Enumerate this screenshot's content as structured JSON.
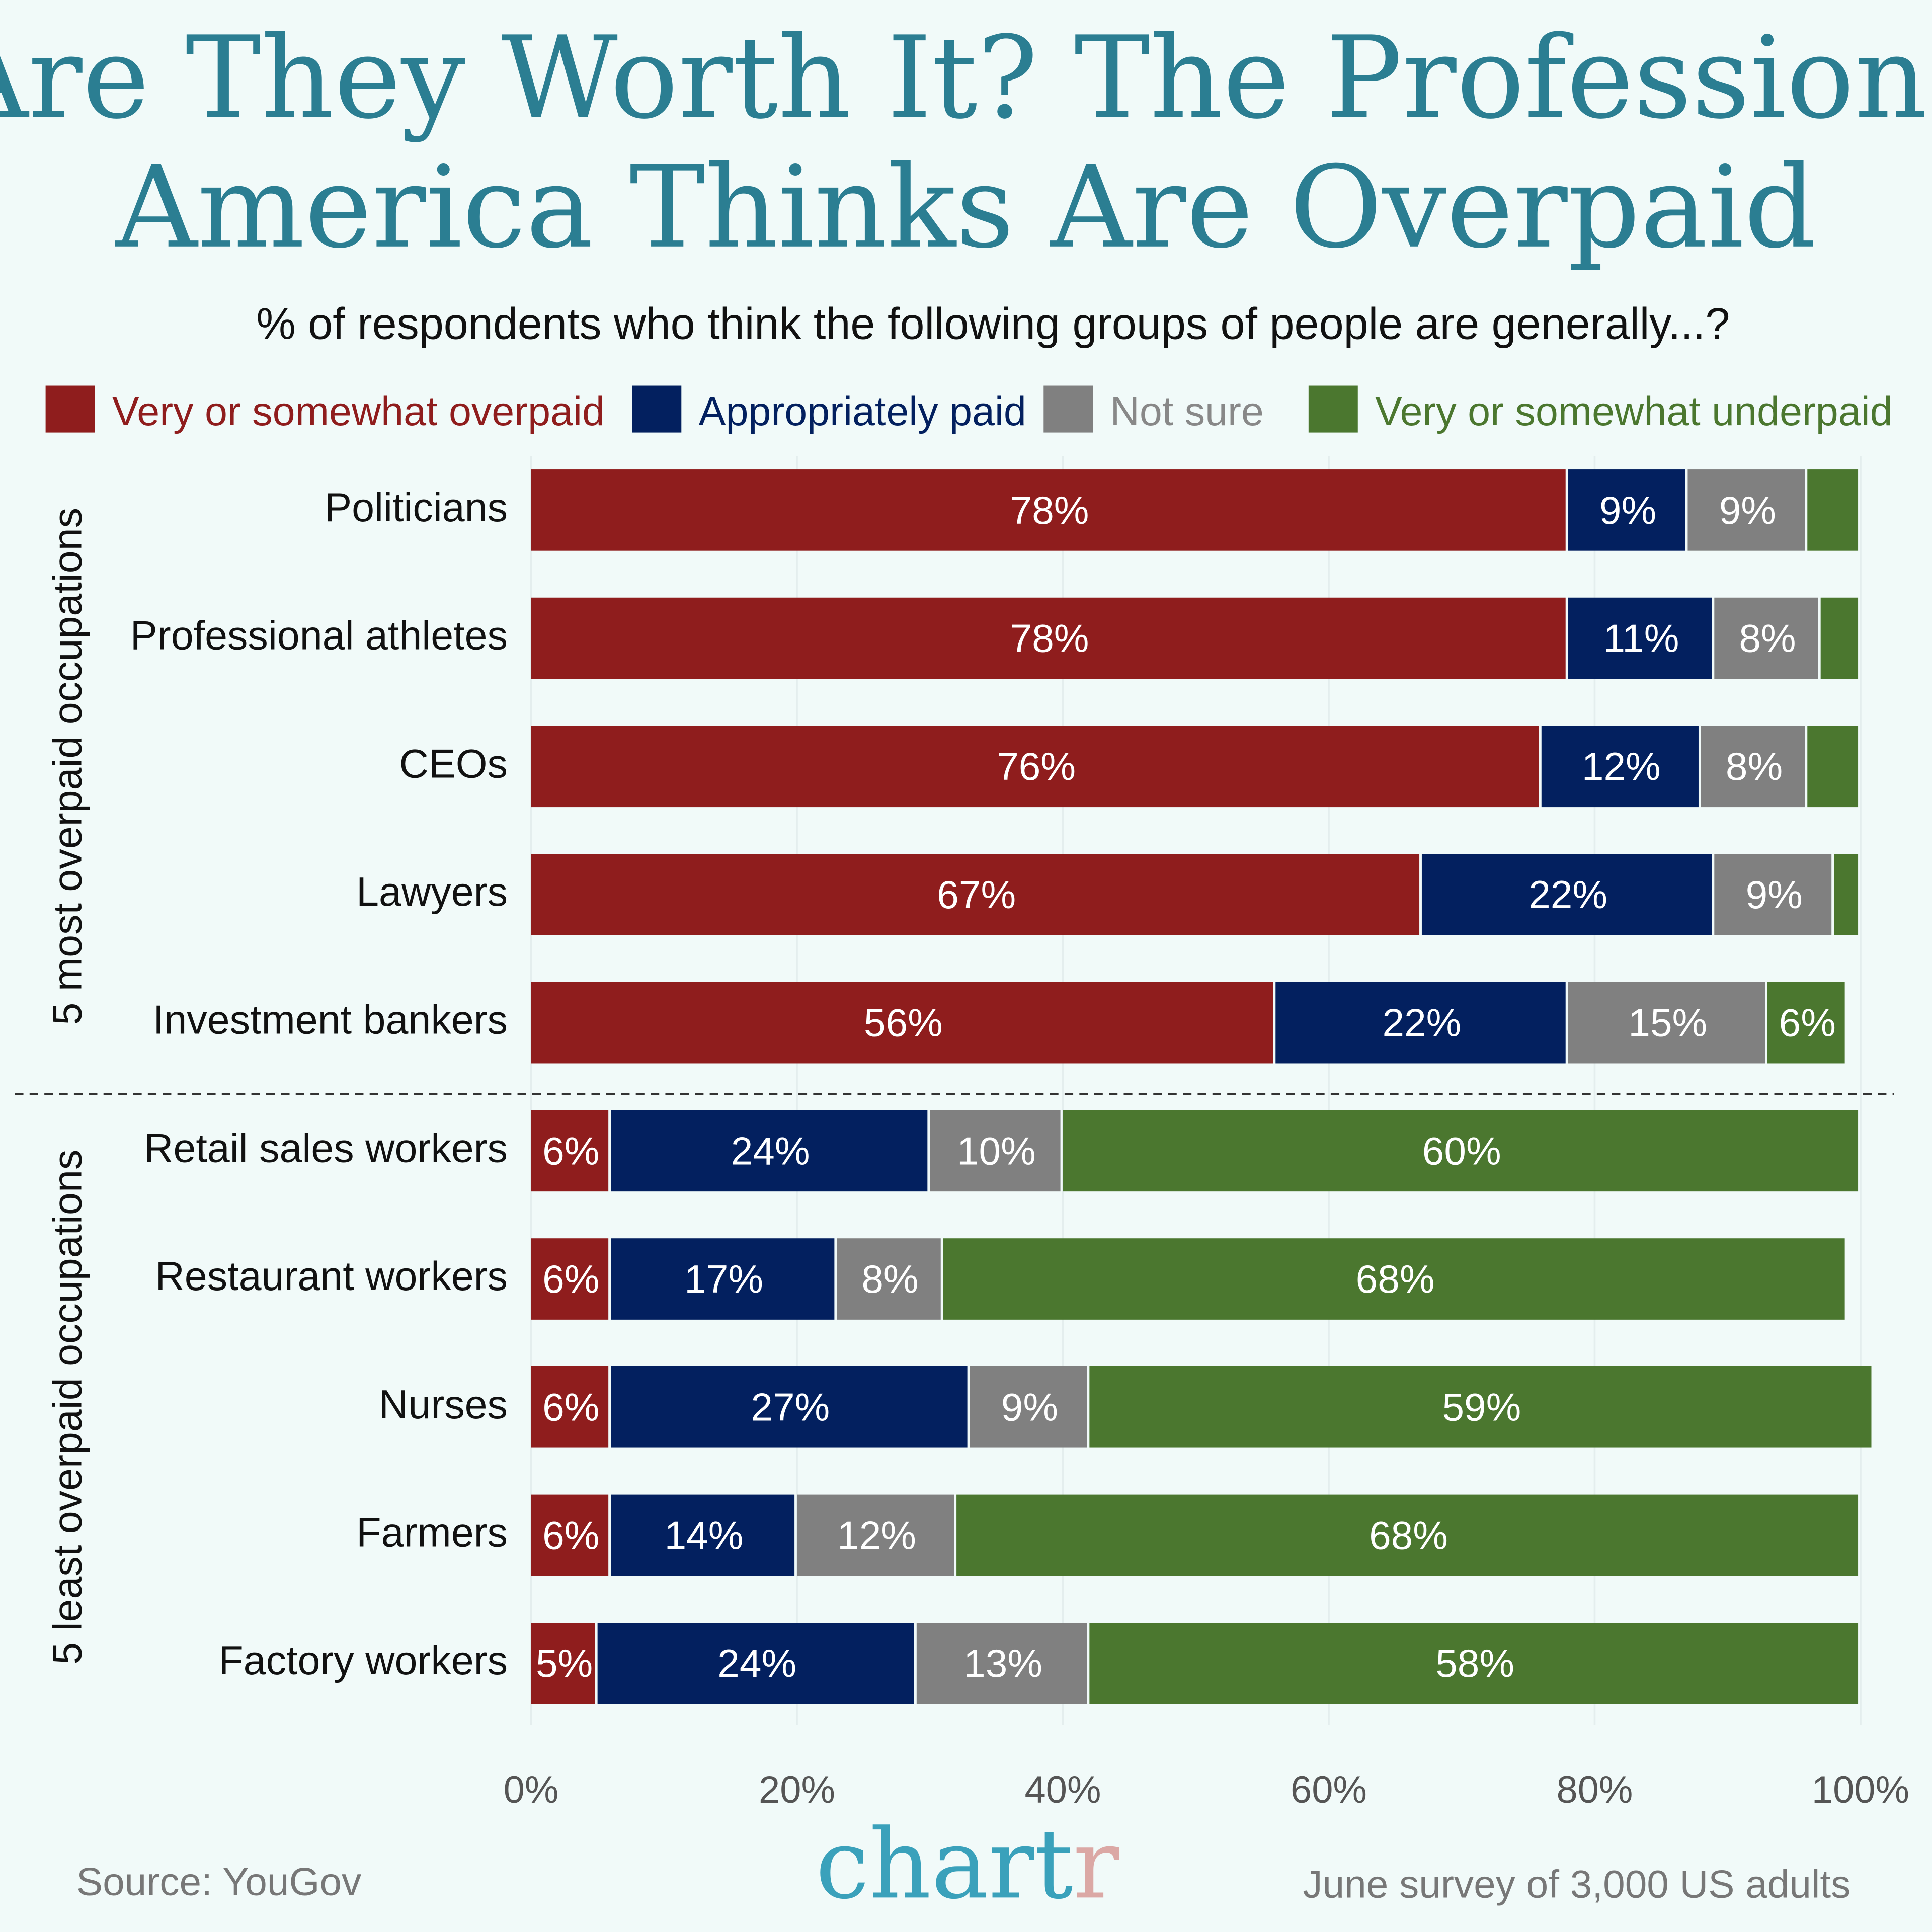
{
  "title_lines": [
    "Are They Worth It? The Professions",
    "America Thinks Are Overpaid"
  ],
  "subtitle": "% of respondents who think the following groups of people are generally...?",
  "footer": {
    "source": "Source: YouGov",
    "logo": "chartr",
    "note": "June survey of 3,000 US adults"
  },
  "chart_data": {
    "type": "bar",
    "orientation": "horizontal",
    "stacked": true,
    "xlim": [
      0,
      100
    ],
    "x_ticks": [
      "0%",
      "20%",
      "40%",
      "60%",
      "80%",
      "100%"
    ],
    "grid": true,
    "legend_position": "top",
    "series": [
      {
        "name": "Very or somewhat overpaid",
        "color": "#8f1d1d"
      },
      {
        "name": "Appropriately paid",
        "color": "#03205f"
      },
      {
        "name": "Not sure",
        "color": "#808080"
      },
      {
        "name": "Very or somewhat underpaid",
        "color": "#4b772f"
      }
    ],
    "groups": [
      {
        "label": "5 most overpaid occupations",
        "rows": [
          {
            "category": "Politicians",
            "values": [
              78,
              9,
              9,
              4
            ],
            "labels": [
              "78%",
              "9%",
              "9%",
              ""
            ]
          },
          {
            "category": "Professional athletes",
            "values": [
              78,
              11,
              8,
              3
            ],
            "labels": [
              "78%",
              "11%",
              "8%",
              ""
            ]
          },
          {
            "category": "CEOs",
            "values": [
              76,
              12,
              8,
              4
            ],
            "labels": [
              "76%",
              "12%",
              "8%",
              ""
            ]
          },
          {
            "category": "Lawyers",
            "values": [
              67,
              22,
              9,
              2
            ],
            "labels": [
              "67%",
              "22%",
              "9%",
              ""
            ]
          },
          {
            "category": "Investment bankers",
            "values": [
              56,
              22,
              15,
              6
            ],
            "labels": [
              "56%",
              "22%",
              "15%",
              "6%"
            ]
          }
        ]
      },
      {
        "label": "5 least overpaid occupations",
        "rows": [
          {
            "category": "Retail sales workers",
            "values": [
              6,
              24,
              10,
              60
            ],
            "labels": [
              "6%",
              "24%",
              "10%",
              "60%"
            ]
          },
          {
            "category": "Restaurant workers",
            "values": [
              6,
              17,
              8,
              68
            ],
            "labels": [
              "6%",
              "17%",
              "8%",
              "68%"
            ]
          },
          {
            "category": "Nurses",
            "values": [
              6,
              27,
              9,
              59
            ],
            "labels": [
              "6%",
              "27%",
              "9%",
              "59%"
            ]
          },
          {
            "category": "Farmers",
            "values": [
              6,
              14,
              12,
              68
            ],
            "labels": [
              "6%",
              "14%",
              "12%",
              "68%"
            ]
          },
          {
            "category": "Factory workers",
            "values": [
              5,
              24,
              13,
              58
            ],
            "labels": [
              "5%",
              "24%",
              "13%",
              "58%"
            ]
          }
        ]
      }
    ]
  }
}
